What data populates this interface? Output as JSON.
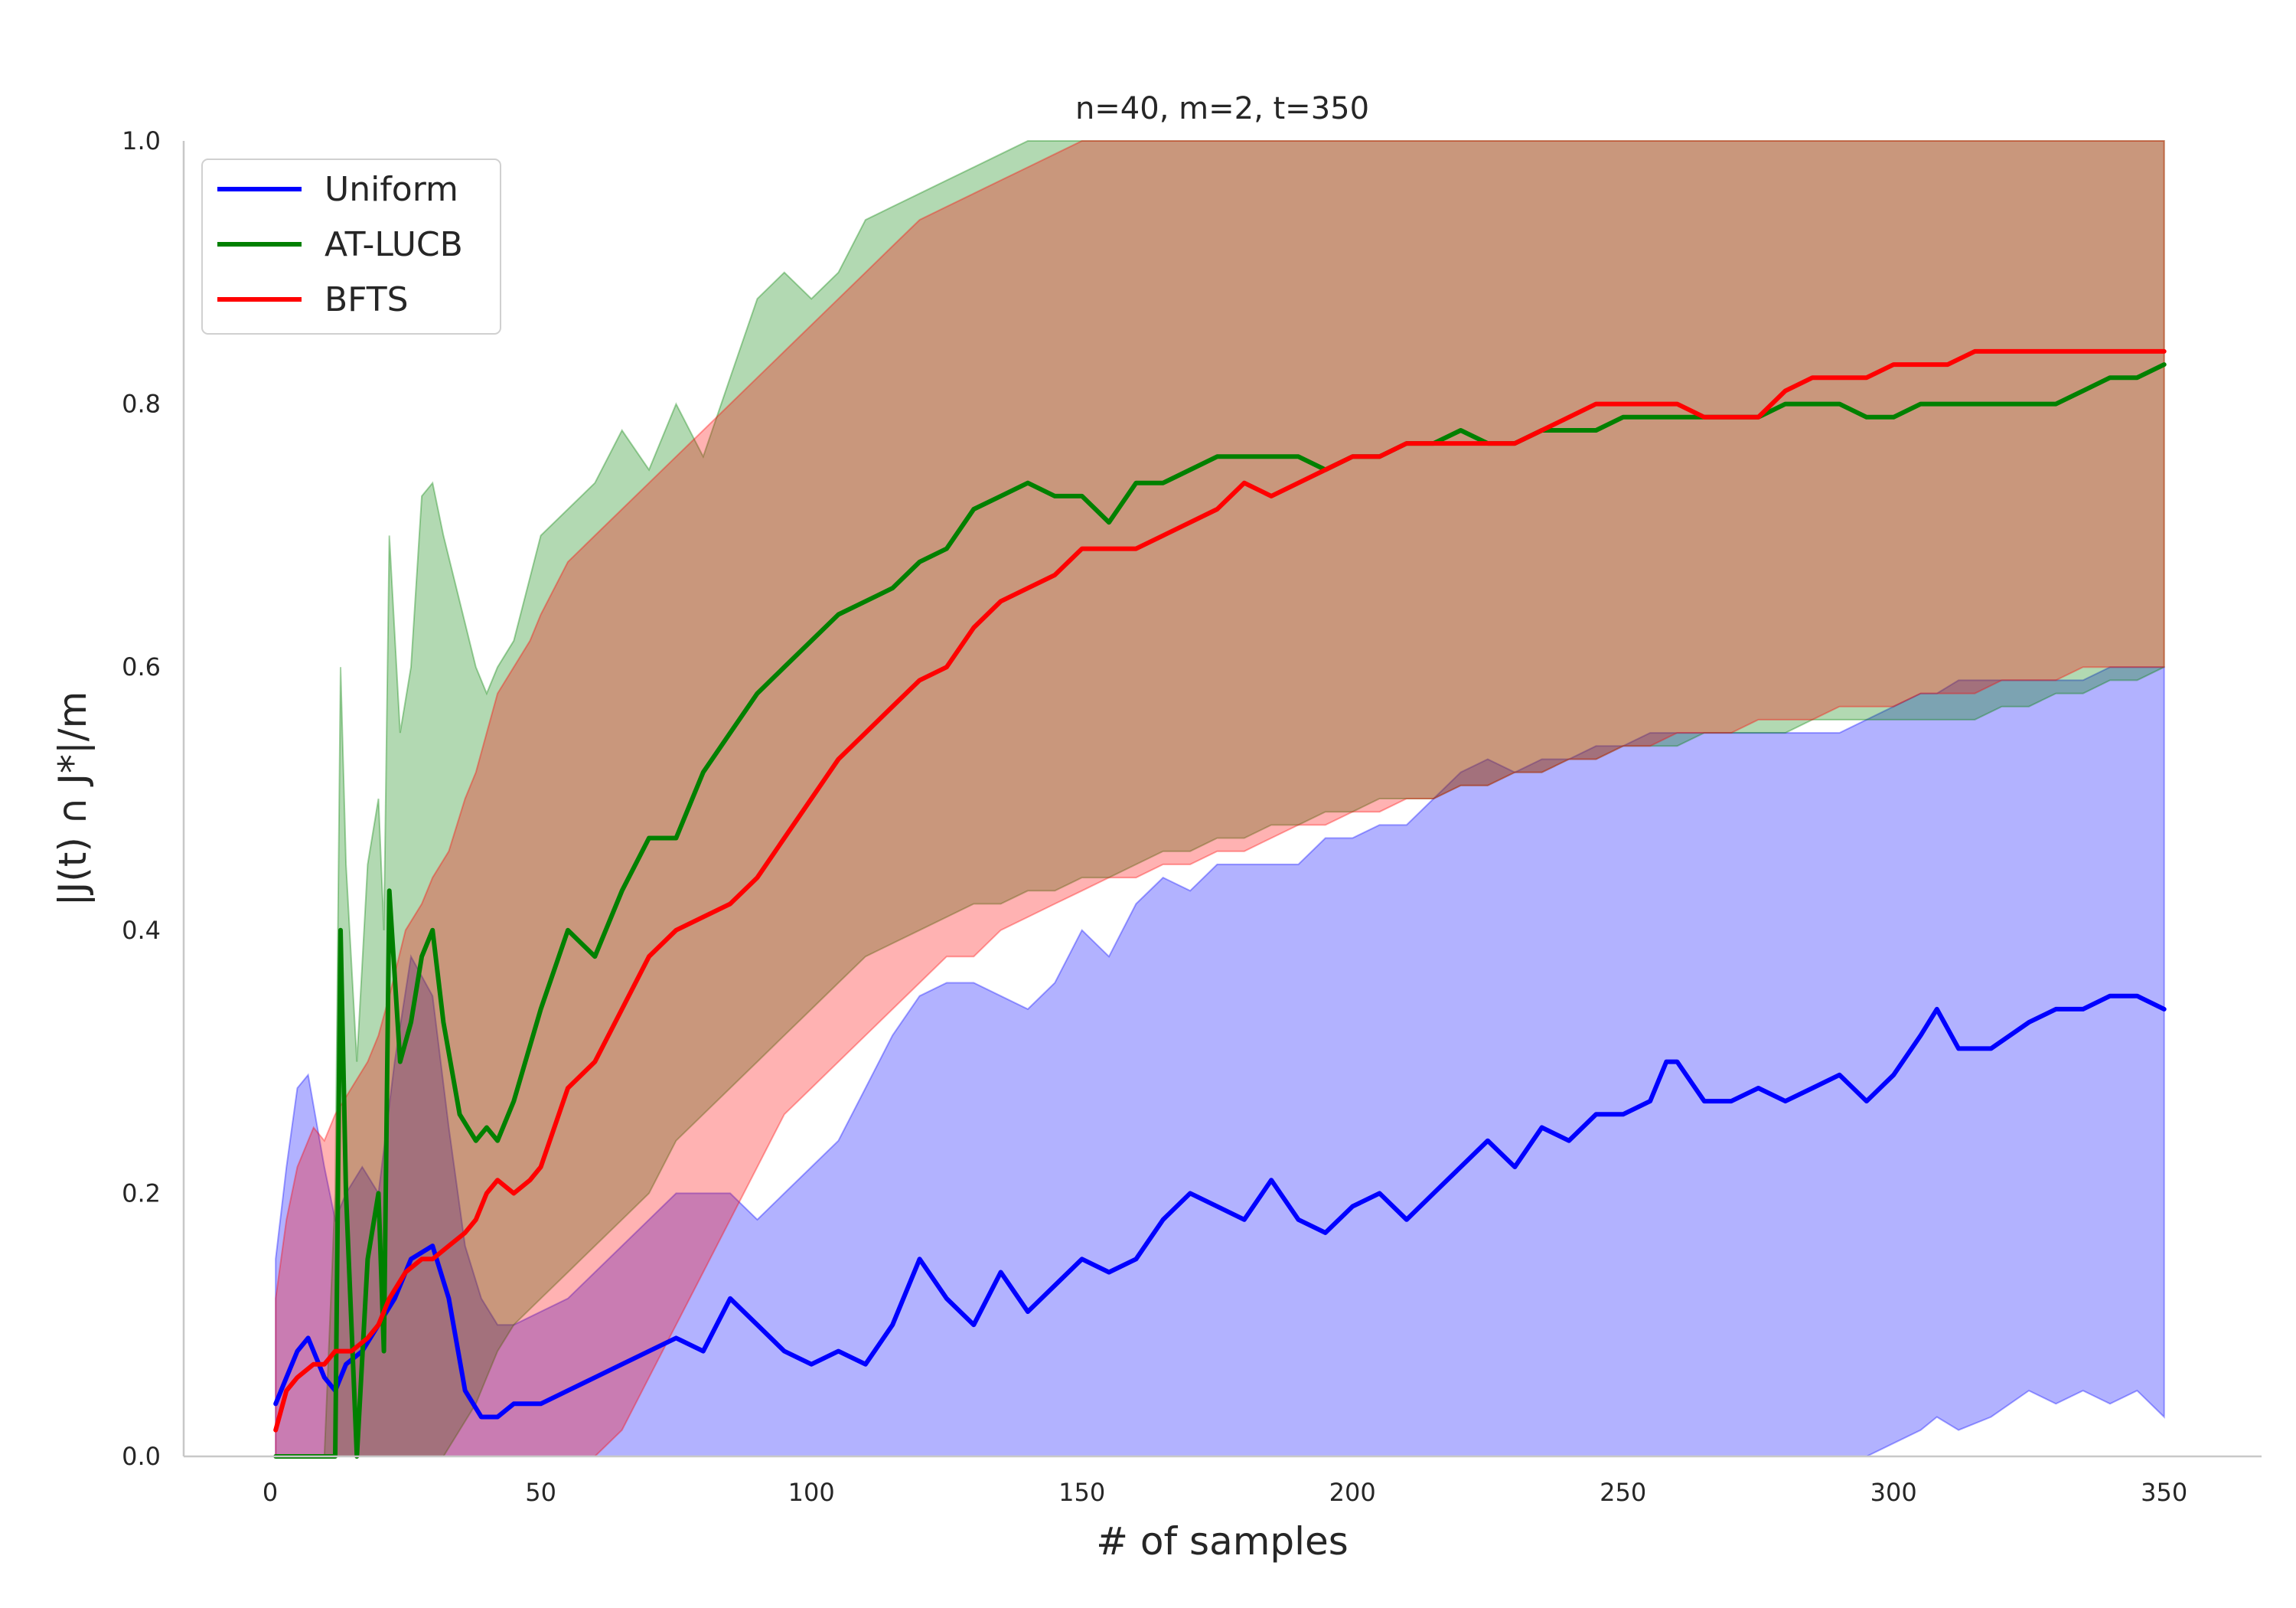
{
  "chart_data": {
    "type": "line",
    "title": "n=40, m=2, t=350",
    "xlabel": "# of samples",
    "ylabel": "|J(t) ∩ J*|/m",
    "xlim": [
      -16,
      368
    ],
    "ylim": [
      0,
      1
    ],
    "xticks": [
      0,
      50,
      100,
      150,
      200,
      250,
      300,
      350
    ],
    "yticks": [
      0.0,
      0.2,
      0.4,
      0.6,
      0.8,
      1.0
    ],
    "xtick_labels": [
      "0",
      "50",
      "100",
      "150",
      "200",
      "250",
      "300",
      "350"
    ],
    "ytick_labels": [
      "0.0",
      "0.2",
      "0.4",
      "0.6",
      "0.8",
      "1.0"
    ],
    "grid": false,
    "legend_position": "top-left",
    "series": [
      {
        "name": "Uniform",
        "color": "#0000ff",
        "x": [
          1,
          3,
          5,
          7,
          10,
          12,
          14,
          17,
          20,
          23,
          26,
          30,
          33,
          36,
          39,
          42,
          45,
          50,
          55,
          60,
          65,
          70,
          75,
          80,
          85,
          90,
          95,
          100,
          105,
          110,
          115,
          120,
          125,
          130,
          135,
          140,
          145,
          150,
          155,
          160,
          165,
          170,
          175,
          180,
          185,
          190,
          195,
          200,
          205,
          210,
          215,
          220,
          225,
          230,
          235,
          240,
          245,
          250,
          255,
          258,
          260,
          265,
          270,
          275,
          280,
          285,
          290,
          295,
          300,
          305,
          308,
          312,
          318,
          325,
          330,
          335,
          340,
          345,
          350
        ],
        "y": [
          0.04,
          0.06,
          0.08,
          0.09,
          0.06,
          0.05,
          0.07,
          0.08,
          0.1,
          0.12,
          0.15,
          0.16,
          0.12,
          0.05,
          0.03,
          0.03,
          0.04,
          0.04,
          0.05,
          0.06,
          0.07,
          0.08,
          0.09,
          0.08,
          0.12,
          0.1,
          0.08,
          0.07,
          0.08,
          0.07,
          0.1,
          0.15,
          0.12,
          0.1,
          0.14,
          0.11,
          0.13,
          0.15,
          0.14,
          0.15,
          0.18,
          0.2,
          0.19,
          0.18,
          0.21,
          0.18,
          0.17,
          0.19,
          0.2,
          0.18,
          0.2,
          0.22,
          0.24,
          0.22,
          0.25,
          0.24,
          0.26,
          0.26,
          0.27,
          0.3,
          0.3,
          0.27,
          0.27,
          0.28,
          0.27,
          0.28,
          0.29,
          0.27,
          0.29,
          0.32,
          0.34,
          0.31,
          0.31,
          0.33,
          0.34,
          0.34,
          0.35,
          0.35,
          0.34
        ],
        "band_lower": [
          0,
          0,
          0,
          0,
          0,
          0,
          0,
          0,
          0,
          0,
          0,
          0,
          0,
          0,
          0,
          0,
          0,
          0,
          0,
          0,
          0,
          0,
          0,
          0,
          0,
          0,
          0,
          0,
          0,
          0,
          0,
          0,
          0,
          0,
          0,
          0,
          0,
          0,
          0,
          0,
          0,
          0,
          0,
          0,
          0,
          0,
          0,
          0,
          0,
          0,
          0,
          0,
          0,
          0,
          0,
          0,
          0,
          0,
          0,
          0,
          0,
          0,
          0,
          0,
          0,
          0,
          0,
          0,
          0.01,
          0.02,
          0.03,
          0.02,
          0.03,
          0.05,
          0.04,
          0.05,
          0.04,
          0.05,
          0.03
        ],
        "band_upper": [
          0.15,
          0.22,
          0.28,
          0.29,
          0.22,
          0.18,
          0.2,
          0.22,
          0.2,
          0.3,
          0.38,
          0.35,
          0.25,
          0.16,
          0.12,
          0.1,
          0.1,
          0.11,
          0.12,
          0.14,
          0.16,
          0.18,
          0.2,
          0.2,
          0.2,
          0.18,
          0.2,
          0.22,
          0.24,
          0.28,
          0.32,
          0.35,
          0.36,
          0.36,
          0.35,
          0.34,
          0.36,
          0.4,
          0.38,
          0.42,
          0.44,
          0.43,
          0.45,
          0.45,
          0.45,
          0.45,
          0.47,
          0.47,
          0.48,
          0.48,
          0.5,
          0.52,
          0.53,
          0.52,
          0.53,
          0.53,
          0.54,
          0.54,
          0.55,
          0.55,
          0.55,
          0.55,
          0.55,
          0.55,
          0.55,
          0.55,
          0.55,
          0.56,
          0.57,
          0.58,
          0.58,
          0.59,
          0.59,
          0.59,
          0.59,
          0.59,
          0.6,
          0.6,
          0.6
        ]
      },
      {
        "name": "AT-LUCB",
        "color": "#008000",
        "x": [
          1,
          5,
          10,
          12,
          13,
          14,
          16,
          18,
          20,
          21,
          22,
          24,
          26,
          28,
          30,
          32,
          35,
          38,
          40,
          42,
          45,
          50,
          55,
          60,
          65,
          70,
          75,
          80,
          85,
          90,
          95,
          100,
          105,
          110,
          115,
          120,
          125,
          130,
          135,
          140,
          145,
          150,
          155,
          160,
          165,
          170,
          175,
          180,
          185,
          190,
          195,
          200,
          205,
          210,
          215,
          220,
          225,
          230,
          235,
          240,
          245,
          250,
          255,
          260,
          265,
          270,
          275,
          280,
          285,
          290,
          295,
          300,
          305,
          310,
          315,
          320,
          325,
          330,
          335,
          340,
          345,
          350
        ],
        "y": [
          0.0,
          0.0,
          0.0,
          0.0,
          0.4,
          0.2,
          0.0,
          0.15,
          0.2,
          0.08,
          0.43,
          0.3,
          0.33,
          0.38,
          0.4,
          0.33,
          0.26,
          0.24,
          0.25,
          0.24,
          0.27,
          0.34,
          0.4,
          0.38,
          0.43,
          0.47,
          0.47,
          0.52,
          0.55,
          0.58,
          0.6,
          0.62,
          0.64,
          0.65,
          0.66,
          0.68,
          0.69,
          0.72,
          0.73,
          0.74,
          0.73,
          0.73,
          0.71,
          0.74,
          0.74,
          0.75,
          0.76,
          0.76,
          0.76,
          0.76,
          0.75,
          0.76,
          0.76,
          0.77,
          0.77,
          0.78,
          0.77,
          0.77,
          0.78,
          0.78,
          0.78,
          0.79,
          0.79,
          0.79,
          0.79,
          0.79,
          0.79,
          0.8,
          0.8,
          0.8,
          0.79,
          0.79,
          0.8,
          0.8,
          0.8,
          0.8,
          0.8,
          0.8,
          0.81,
          0.82,
          0.82,
          0.83
        ],
        "band_lower": [
          0,
          0,
          0,
          0,
          0,
          0,
          0,
          0,
          0,
          0,
          0,
          0,
          0,
          0,
          0,
          0,
          0.02,
          0.04,
          0.06,
          0.08,
          0.1,
          0.12,
          0.14,
          0.16,
          0.18,
          0.2,
          0.24,
          0.26,
          0.28,
          0.3,
          0.32,
          0.34,
          0.36,
          0.38,
          0.39,
          0.4,
          0.41,
          0.42,
          0.42,
          0.43,
          0.43,
          0.44,
          0.44,
          0.45,
          0.46,
          0.46,
          0.47,
          0.47,
          0.48,
          0.48,
          0.49,
          0.49,
          0.5,
          0.5,
          0.5,
          0.51,
          0.51,
          0.52,
          0.52,
          0.53,
          0.53,
          0.54,
          0.54,
          0.54,
          0.55,
          0.55,
          0.55,
          0.55,
          0.56,
          0.56,
          0.56,
          0.56,
          0.56,
          0.56,
          0.56,
          0.57,
          0.57,
          0.58,
          0.58,
          0.59,
          0.59,
          0.6
        ],
        "band_upper": [
          0,
          0,
          0,
          0.2,
          0.6,
          0.45,
          0.3,
          0.45,
          0.5,
          0.4,
          0.7,
          0.55,
          0.6,
          0.73,
          0.74,
          0.7,
          0.65,
          0.6,
          0.58,
          0.6,
          0.62,
          0.7,
          0.72,
          0.74,
          0.78,
          0.75,
          0.8,
          0.76,
          0.82,
          0.88,
          0.9,
          0.88,
          0.9,
          0.94,
          0.95,
          0.96,
          0.97,
          0.98,
          0.99,
          1.0,
          1.0,
          1.0,
          1.0,
          1.0,
          1.0,
          1.0,
          1.0,
          1.0,
          1.0,
          1.0,
          1.0,
          1.0,
          1.0,
          1.0,
          1.0,
          1.0,
          1.0,
          1.0,
          1.0,
          1.0,
          1.0,
          1.0,
          1.0,
          1.0,
          1.0,
          1.0,
          1.0,
          1.0,
          1.0,
          1.0,
          1.0,
          1.0,
          1.0,
          1.0,
          1.0,
          1.0,
          1.0,
          1.0,
          1.0,
          1.0,
          1.0,
          1.0
        ]
      },
      {
        "name": "BFTS",
        "color": "#ff0000",
        "x": [
          1,
          3,
          5,
          8,
          10,
          12,
          15,
          18,
          20,
          22,
          25,
          28,
          30,
          33,
          36,
          38,
          40,
          42,
          45,
          48,
          50,
          55,
          60,
          65,
          70,
          75,
          80,
          85,
          90,
          95,
          100,
          105,
          110,
          115,
          120,
          125,
          130,
          135,
          140,
          145,
          150,
          155,
          160,
          165,
          170,
          175,
          180,
          185,
          190,
          195,
          200,
          205,
          210,
          215,
          220,
          225,
          230,
          235,
          240,
          245,
          250,
          255,
          260,
          265,
          270,
          275,
          280,
          285,
          290,
          295,
          300,
          305,
          310,
          315,
          320,
          325,
          330,
          335,
          340,
          345,
          350
        ],
        "y": [
          0.02,
          0.05,
          0.06,
          0.07,
          0.07,
          0.08,
          0.08,
          0.09,
          0.1,
          0.12,
          0.14,
          0.15,
          0.15,
          0.16,
          0.17,
          0.18,
          0.2,
          0.21,
          0.2,
          0.21,
          0.22,
          0.28,
          0.3,
          0.34,
          0.38,
          0.4,
          0.41,
          0.42,
          0.44,
          0.47,
          0.5,
          0.53,
          0.55,
          0.57,
          0.59,
          0.6,
          0.63,
          0.65,
          0.66,
          0.67,
          0.69,
          0.69,
          0.69,
          0.7,
          0.71,
          0.72,
          0.74,
          0.73,
          0.74,
          0.75,
          0.76,
          0.76,
          0.77,
          0.77,
          0.77,
          0.77,
          0.77,
          0.78,
          0.79,
          0.8,
          0.8,
          0.8,
          0.8,
          0.79,
          0.79,
          0.79,
          0.81,
          0.82,
          0.82,
          0.82,
          0.83,
          0.83,
          0.83,
          0.84,
          0.84,
          0.84,
          0.84,
          0.84,
          0.84,
          0.84,
          0.84
        ],
        "band_lower": [
          0,
          0,
          0,
          0,
          0,
          0,
          0,
          0,
          0,
          0,
          0,
          0,
          0,
          0,
          0,
          0,
          0,
          0,
          0,
          0,
          0,
          0,
          0,
          0.02,
          0.06,
          0.1,
          0.14,
          0.18,
          0.22,
          0.26,
          0.28,
          0.3,
          0.32,
          0.34,
          0.36,
          0.38,
          0.38,
          0.4,
          0.41,
          0.42,
          0.43,
          0.44,
          0.44,
          0.45,
          0.45,
          0.46,
          0.46,
          0.47,
          0.48,
          0.48,
          0.49,
          0.49,
          0.5,
          0.5,
          0.51,
          0.51,
          0.52,
          0.52,
          0.53,
          0.53,
          0.54,
          0.54,
          0.55,
          0.55,
          0.55,
          0.56,
          0.56,
          0.56,
          0.57,
          0.57,
          0.57,
          0.58,
          0.58,
          0.58,
          0.59,
          0.59,
          0.59,
          0.6,
          0.6,
          0.6,
          0.6
        ],
        "band_upper": [
          0.12,
          0.18,
          0.22,
          0.25,
          0.24,
          0.26,
          0.28,
          0.3,
          0.32,
          0.35,
          0.4,
          0.42,
          0.44,
          0.46,
          0.5,
          0.52,
          0.55,
          0.58,
          0.6,
          0.62,
          0.64,
          0.68,
          0.7,
          0.72,
          0.74,
          0.76,
          0.78,
          0.8,
          0.82,
          0.84,
          0.86,
          0.88,
          0.9,
          0.92,
          0.94,
          0.95,
          0.96,
          0.97,
          0.98,
          0.99,
          1.0,
          1.0,
          1.0,
          1.0,
          1.0,
          1.0,
          1.0,
          1.0,
          1.0,
          1.0,
          1.0,
          1.0,
          1.0,
          1.0,
          1.0,
          1.0,
          1.0,
          1.0,
          1.0,
          1.0,
          1.0,
          1.0,
          1.0,
          1.0,
          1.0,
          1.0,
          1.0,
          1.0,
          1.0,
          1.0,
          1.0,
          1.0,
          1.0,
          1.0,
          1.0,
          1.0,
          1.0,
          1.0,
          1.0,
          1.0,
          1.0
        ]
      }
    ]
  }
}
